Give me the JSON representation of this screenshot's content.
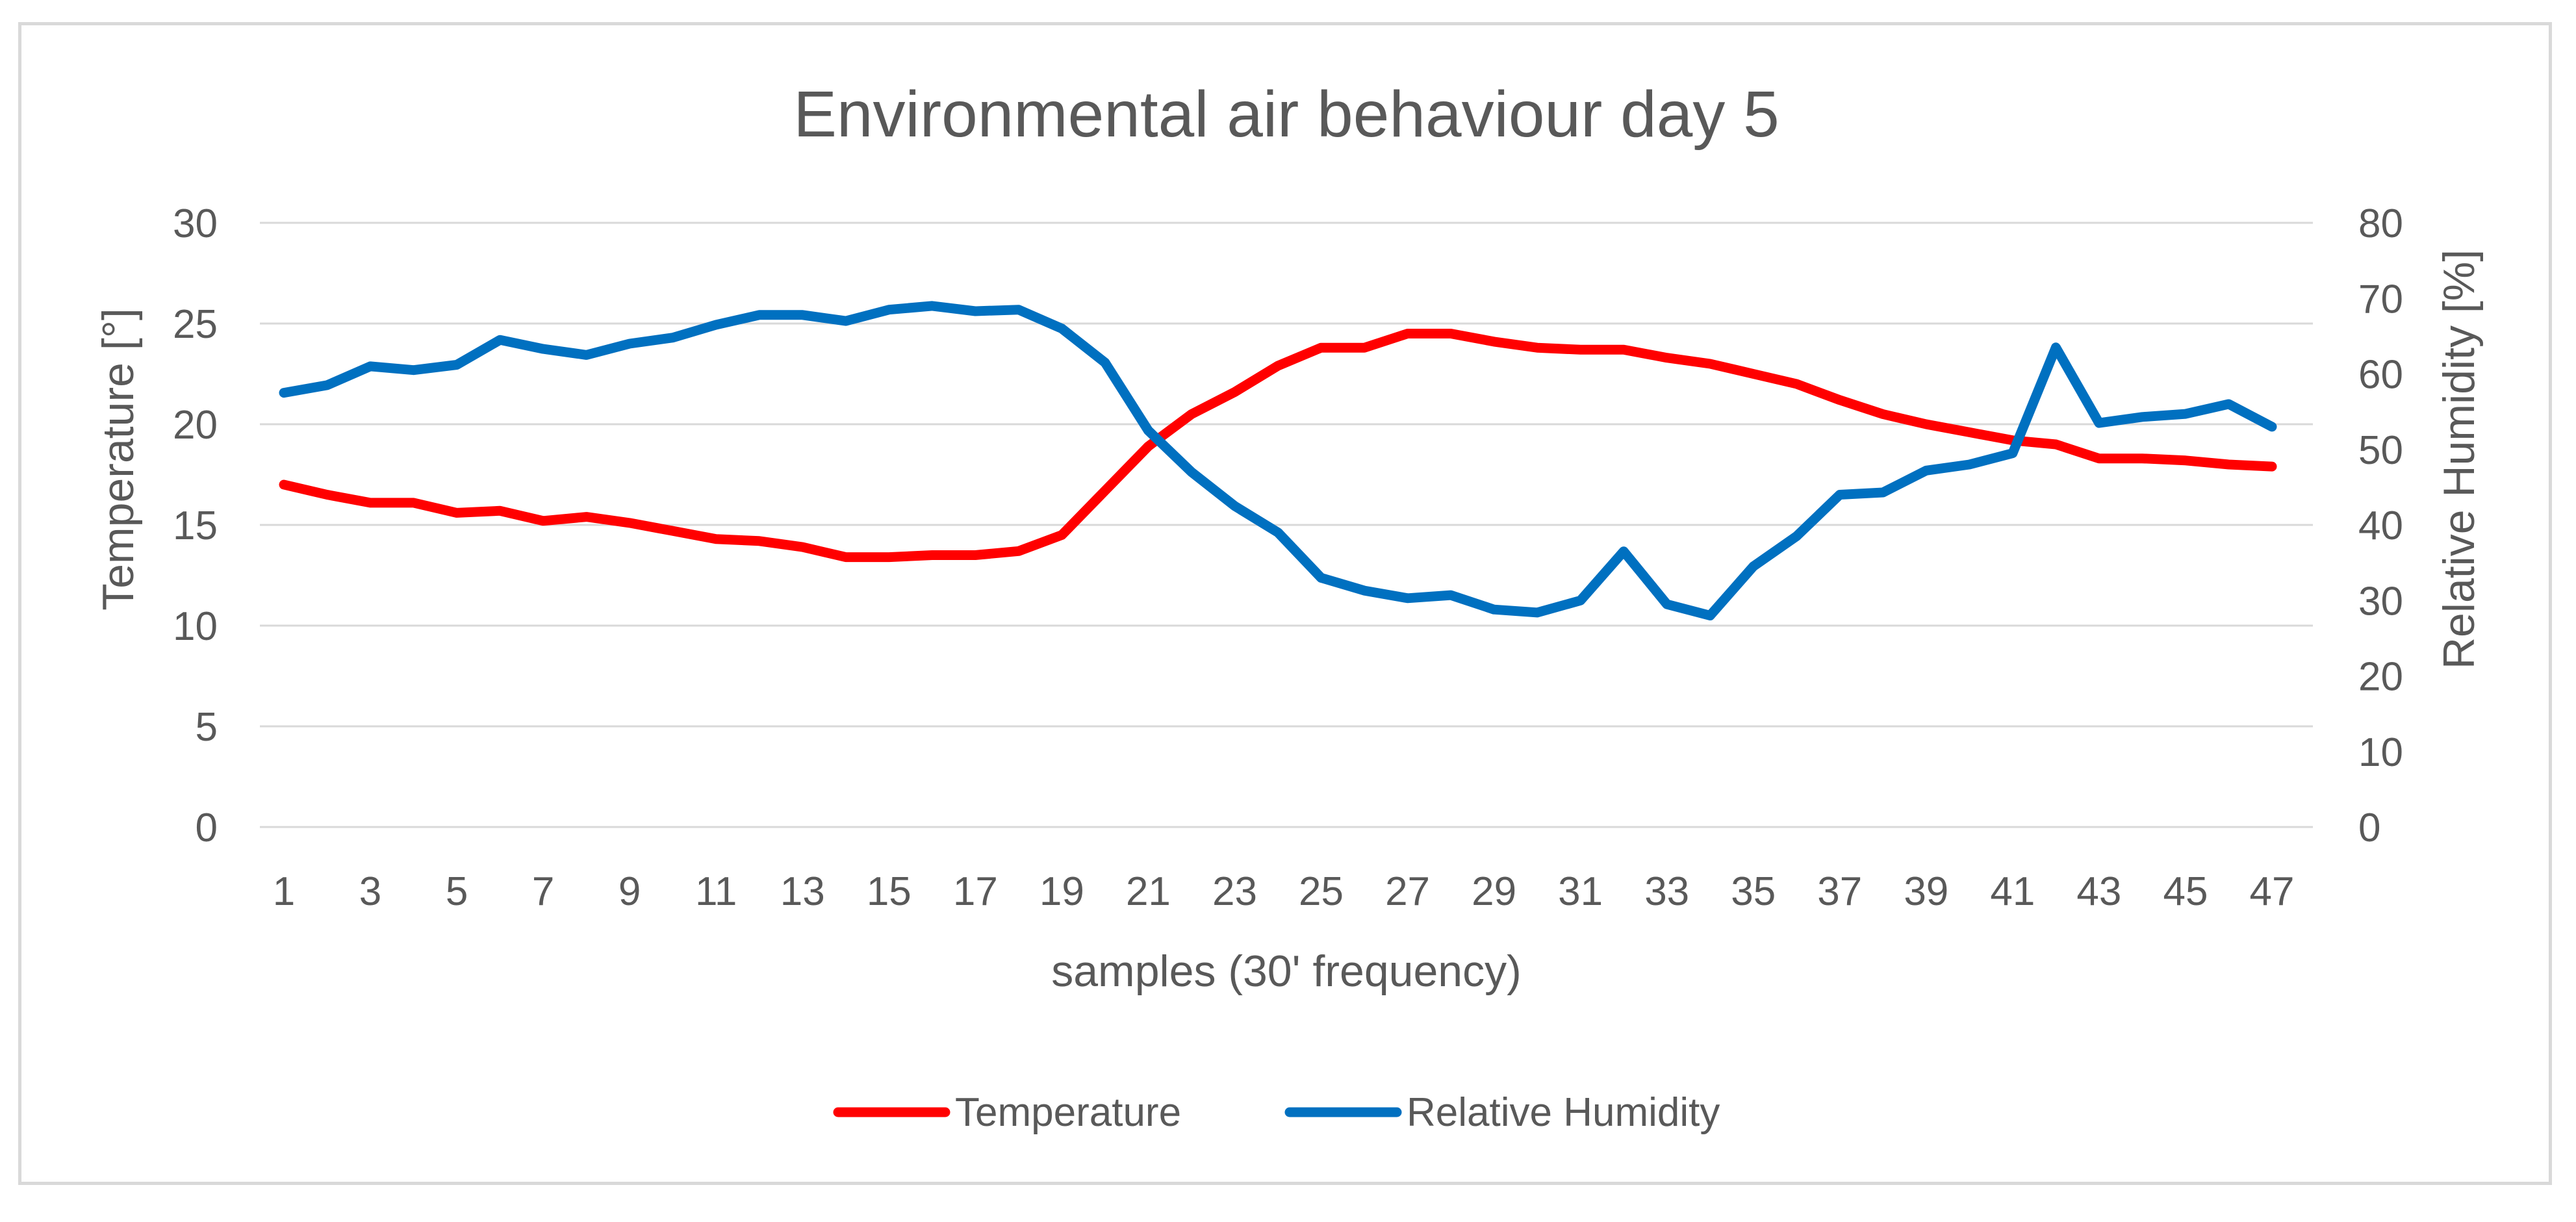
{
  "chart_data": {
    "type": "line",
    "title": "Environmental air behaviour day 5",
    "xlabel": "samples (30' frequency)",
    "ylabel": "Temperature [°]",
    "y2label": "Relative Humidity [%]",
    "ylim": [
      0,
      30
    ],
    "y2lim": [
      0,
      80
    ],
    "yticks": [
      "0",
      "5",
      "10",
      "15",
      "20",
      "25",
      "30"
    ],
    "y2ticks": [
      "0",
      "10",
      "20",
      "30",
      "40",
      "50",
      "60",
      "70",
      "80"
    ],
    "x": [
      1,
      2,
      3,
      4,
      5,
      6,
      7,
      8,
      9,
      10,
      11,
      12,
      13,
      14,
      15,
      16,
      17,
      18,
      19,
      20,
      21,
      22,
      23,
      24,
      25,
      26,
      27,
      28,
      29,
      30,
      31,
      32,
      33,
      34,
      35,
      36,
      37,
      38,
      39,
      40,
      41,
      42,
      43,
      44,
      45,
      46,
      47
    ],
    "xtick_labels": [
      "1",
      "3",
      "5",
      "7",
      "9",
      "11",
      "13",
      "15",
      "17",
      "19",
      "21",
      "23",
      "25",
      "27",
      "29",
      "31",
      "33",
      "35",
      "37",
      "39",
      "41",
      "43",
      "45",
      "47"
    ],
    "grid": true,
    "legend_position": "bottom",
    "series": [
      {
        "name": "Temperature",
        "axis": "left",
        "color": "#ff0000",
        "values": [
          17.0,
          16.5,
          16.1,
          16.1,
          15.6,
          15.7,
          15.2,
          15.4,
          15.1,
          14.7,
          14.3,
          14.2,
          13.9,
          13.4,
          13.4,
          13.5,
          13.5,
          13.7,
          14.5,
          16.7,
          18.9,
          20.5,
          21.6,
          22.9,
          23.8,
          23.8,
          24.5,
          24.5,
          24.1,
          23.8,
          23.7,
          23.7,
          23.3,
          23.0,
          22.5,
          22.0,
          21.2,
          20.5,
          20.0,
          19.6,
          19.2,
          19.0,
          18.3,
          18.3,
          18.2,
          18.0,
          17.9
        ]
      },
      {
        "name": "Relative Humidity",
        "axis": "right",
        "color": "#0070c0",
        "values": [
          57.5,
          58.5,
          61.0,
          60.5,
          61.2,
          64.5,
          63.3,
          62.5,
          64.0,
          64.8,
          66.5,
          67.8,
          67.8,
          67.0,
          68.5,
          69.0,
          68.3,
          68.5,
          66.0,
          61.5,
          52.5,
          47.0,
          42.5,
          39.0,
          33.0,
          31.3,
          30.3,
          30.7,
          28.8,
          28.4,
          30.0,
          36.5,
          29.5,
          28.0,
          34.5,
          38.5,
          44.0,
          44.3,
          47.2,
          48.0,
          49.5,
          63.5,
          53.5,
          54.3,
          54.7,
          56.0,
          53.0
        ]
      }
    ]
  }
}
